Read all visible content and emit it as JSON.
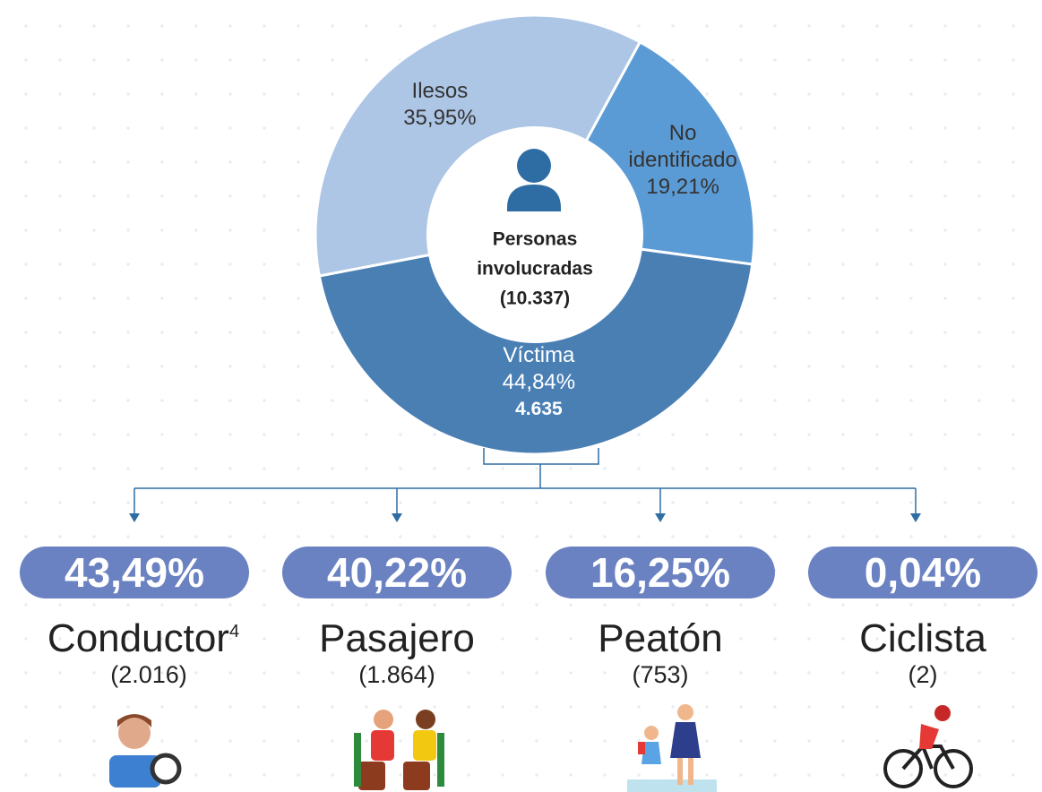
{
  "chart_data": {
    "type": "donut",
    "categories": [
      "No identificado",
      "Víctima",
      "Ilesos"
    ],
    "values": [
      19.21,
      44.84,
      35.95
    ],
    "value_labels": [
      "19,21%",
      "44,84%",
      "35,95%"
    ],
    "colors": [
      "#5b9bd5",
      "#4a7fb4",
      "#adc6e5"
    ],
    "center_label": "Personas involucradas",
    "center_total": "(10.337)",
    "victim_count": "4.635"
  },
  "breakdown": [
    {
      "percent": "43,49%",
      "name": "Conductor",
      "note": "4",
      "count": "(2.016)"
    },
    {
      "percent": "40,22%",
      "name": "Pasajero",
      "count": "(1.864)"
    },
    {
      "percent": "16,25%",
      "name": "Peatón",
      "count": "(753)"
    },
    {
      "percent": "0,04%",
      "name": "Ciclista",
      "count": "(2)"
    }
  ]
}
